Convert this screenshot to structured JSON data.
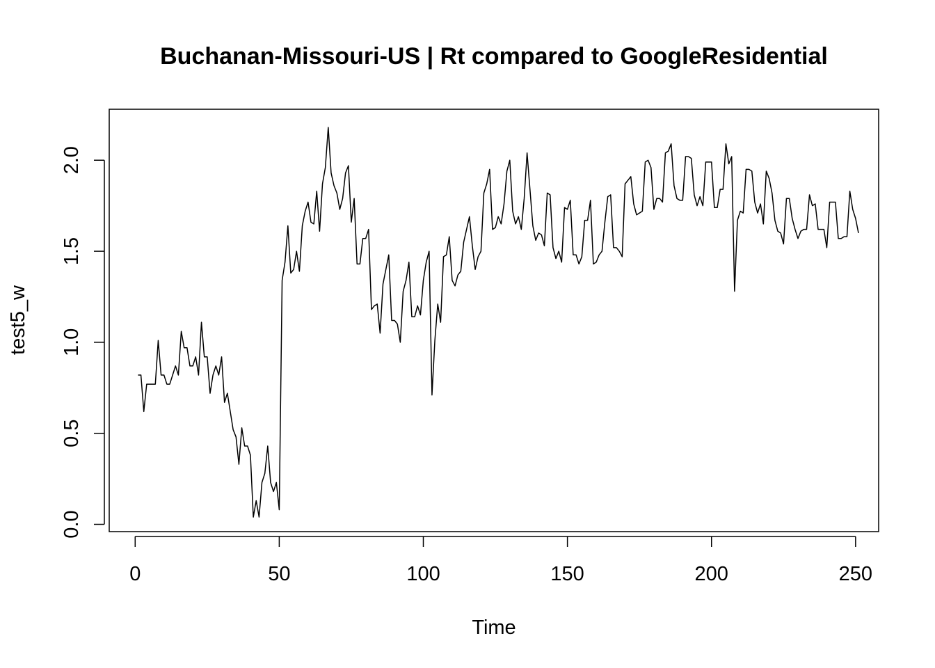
{
  "chart_data": {
    "type": "line",
    "title": "Buchanan-Missouri-US | Rt compared to GoogleResidential",
    "xlabel": "Time",
    "ylabel": "test5_w",
    "xlim": [
      -9,
      258
    ],
    "ylim": [
      -0.04,
      2.28
    ],
    "x_ticks": [
      0,
      50,
      100,
      150,
      200,
      250
    ],
    "y_ticks": [
      0.0,
      0.5,
      1.0,
      1.5,
      2.0
    ],
    "x_tick_labels": [
      "0",
      "50",
      "100",
      "150",
      "200",
      "250"
    ],
    "y_tick_labels": [
      "0.0",
      "0.5",
      "1.0",
      "1.5",
      "2.0"
    ],
    "grid": false,
    "legend": "none",
    "line_color": "#000000",
    "series": [
      {
        "x_start": 1,
        "x_step": 1,
        "values": [
          0.82,
          0.82,
          0.62,
          0.77,
          0.77,
          0.77,
          0.77,
          1.01,
          0.82,
          0.82,
          0.77,
          0.77,
          0.82,
          0.87,
          0.82,
          1.06,
          0.97,
          0.97,
          0.87,
          0.87,
          0.92,
          0.82,
          1.11,
          0.92,
          0.92,
          0.72,
          0.82,
          0.87,
          0.82,
          0.92,
          0.67,
          0.72,
          0.62,
          0.52,
          0.48,
          0.33,
          0.53,
          0.43,
          0.43,
          0.38,
          0.04,
          0.13,
          0.04,
          0.23,
          0.28,
          0.43,
          0.23,
          0.18,
          0.23,
          0.08,
          1.34,
          1.44,
          1.64,
          1.38,
          1.4,
          1.5,
          1.39,
          1.64,
          1.72,
          1.77,
          1.66,
          1.65,
          1.83,
          1.61,
          1.87,
          1.96,
          2.18,
          1.93,
          1.86,
          1.82,
          1.73,
          1.79,
          1.93,
          1.97,
          1.66,
          1.79,
          1.43,
          1.43,
          1.57,
          1.57,
          1.62,
          1.18,
          1.2,
          1.21,
          1.05,
          1.32,
          1.4,
          1.48,
          1.12,
          1.12,
          1.1,
          1.0,
          1.28,
          1.34,
          1.44,
          1.14,
          1.14,
          1.2,
          1.15,
          1.34,
          1.44,
          1.5,
          0.71,
          1.01,
          1.21,
          1.11,
          1.47,
          1.48,
          1.58,
          1.34,
          1.31,
          1.37,
          1.39,
          1.55,
          1.62,
          1.69,
          1.53,
          1.4,
          1.47,
          1.5,
          1.82,
          1.87,
          1.95,
          1.62,
          1.63,
          1.69,
          1.65,
          1.76,
          1.94,
          2.0,
          1.72,
          1.65,
          1.69,
          1.62,
          1.79,
          2.04,
          1.84,
          1.64,
          1.56,
          1.6,
          1.59,
          1.53,
          1.82,
          1.81,
          1.52,
          1.46,
          1.5,
          1.44,
          1.74,
          1.73,
          1.78,
          1.48,
          1.48,
          1.43,
          1.47,
          1.67,
          1.67,
          1.78,
          1.43,
          1.44,
          1.48,
          1.5,
          1.66,
          1.8,
          1.81,
          1.52,
          1.52,
          1.5,
          1.47,
          1.87,
          1.89,
          1.91,
          1.76,
          1.7,
          1.71,
          1.72,
          1.99,
          2.0,
          1.96,
          1.73,
          1.79,
          1.79,
          1.77,
          2.04,
          2.05,
          2.09,
          1.86,
          1.79,
          1.78,
          1.78,
          2.02,
          2.02,
          2.01,
          1.81,
          1.75,
          1.8,
          1.75,
          1.99,
          1.99,
          1.99,
          1.74,
          1.74,
          1.84,
          1.84,
          2.09,
          1.98,
          2.02,
          1.28,
          1.67,
          1.72,
          1.71,
          1.95,
          1.95,
          1.94,
          1.77,
          1.71,
          1.76,
          1.65,
          1.94,
          1.9,
          1.82,
          1.67,
          1.61,
          1.6,
          1.54,
          1.79,
          1.79,
          1.68,
          1.62,
          1.57,
          1.61,
          1.62,
          1.62,
          1.81,
          1.75,
          1.76,
          1.62,
          1.62,
          1.62,
          1.52,
          1.77,
          1.77,
          1.77,
          1.57,
          1.57,
          1.58,
          1.58,
          1.83,
          1.73,
          1.68,
          1.6
        ]
      }
    ]
  }
}
